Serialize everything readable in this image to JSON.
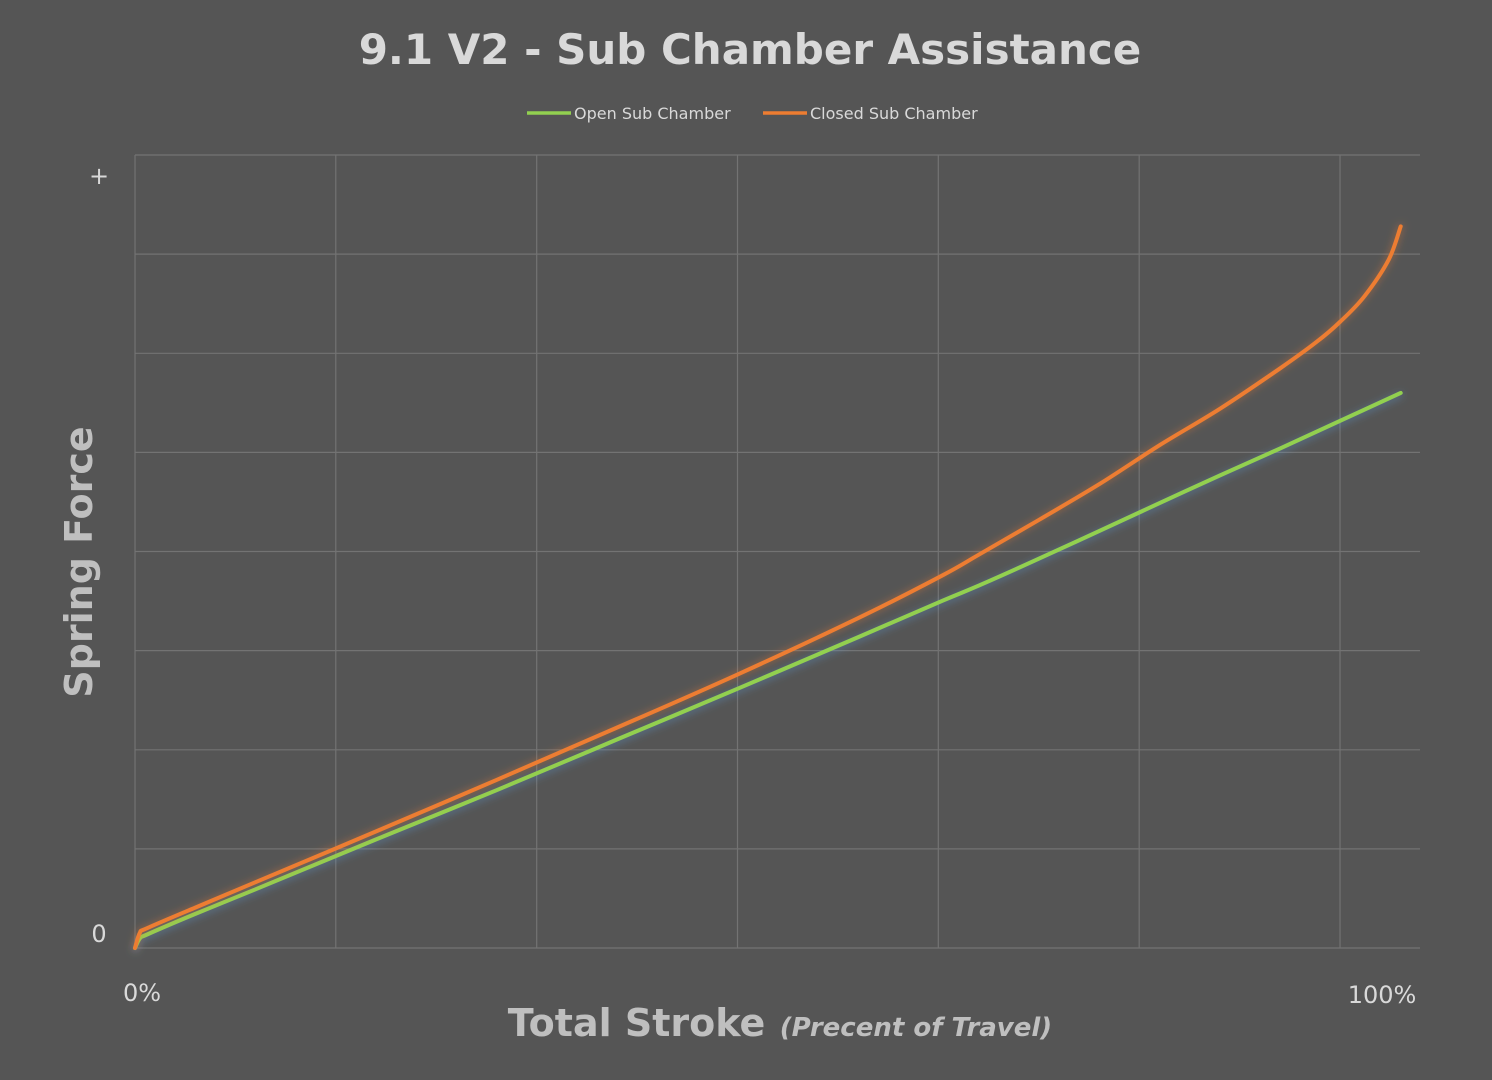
{
  "chart_data": {
    "type": "line",
    "title": "9.1 V2 - Sub Chamber Assistance",
    "xlabel": "Total Stroke",
    "xlabel_suffix": "(Precent of Travel)",
    "ylabel": "Spring Force",
    "x_tick_labels": {
      "min": "0%",
      "max": "100%"
    },
    "y_tick_labels": {
      "min": "0",
      "max": "+"
    },
    "xlim": [
      0,
      106.6
    ],
    "ylim": [
      0,
      100
    ],
    "grid": true,
    "legend_position": "top-center",
    "series": [
      {
        "name": "Open Sub Chamber",
        "color": "#92d050",
        "x": [
          0,
          0.4,
          1,
          5,
          10,
          20,
          30,
          40,
          50,
          60,
          67,
          70,
          75,
          80,
          85,
          90,
          95,
          100,
          105
        ],
        "y": [
          0,
          1.2,
          1.7,
          4.3,
          7.4,
          13.7,
          19.9,
          26.3,
          32.7,
          39.2,
          43.8,
          45.7,
          49.1,
          52.6,
          56.1,
          59.6,
          63.0,
          66.5,
          70.0
        ]
      },
      {
        "name": "Closed Sub Chamber",
        "color": "#ed7d31",
        "x": [
          0,
          0.4,
          1,
          5,
          10,
          20,
          30,
          40,
          50,
          60,
          67,
          70,
          75,
          80,
          85,
          90,
          95,
          98,
          100,
          102,
          104,
          105
        ],
        "y": [
          0,
          1.9,
          2.5,
          5.1,
          8.3,
          14.7,
          21.2,
          27.8,
          34.5,
          41.6,
          47.0,
          49.6,
          54.0,
          58.5,
          63.4,
          68.0,
          73.1,
          76.4,
          79.0,
          82.2,
          86.8,
          91.0
        ]
      }
    ]
  }
}
